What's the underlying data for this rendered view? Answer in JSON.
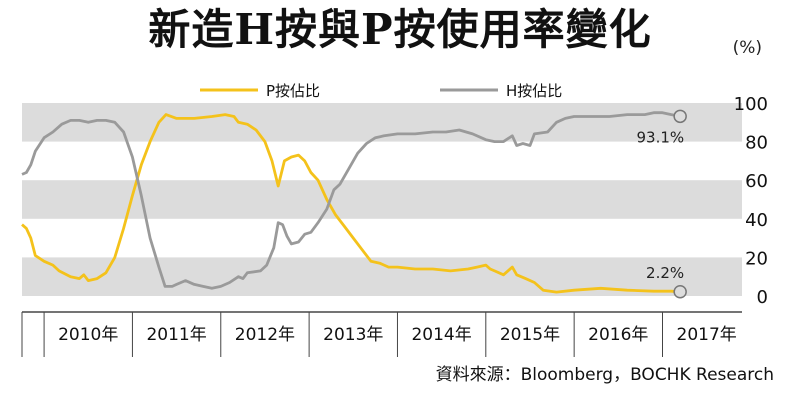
{
  "chart_data": {
    "type": "line",
    "title": "新造H按與P按使用率變化",
    "unit_label": "(%)",
    "source": "資料來源：Bloomberg，BOCHK Research",
    "x_labels": [
      "2010年",
      "2011年",
      "2012年",
      "2013年",
      "2014年",
      "2015年",
      "2016年",
      "2017年"
    ],
    "x_range": [
      2009.75,
      2017.9
    ],
    "yticks": [
      0,
      20,
      40,
      60,
      80,
      100
    ],
    "ylim": [
      0,
      100
    ],
    "legend_placement": "top",
    "bands": [
      [
        80,
        100
      ],
      [
        40,
        60
      ],
      [
        0,
        20
      ]
    ],
    "series": [
      {
        "name": "P按佔比",
        "color": "#f4c21b",
        "end_label": "2.2%",
        "points": [
          [
            2009.75,
            37
          ],
          [
            2009.8,
            35
          ],
          [
            2009.85,
            30
          ],
          [
            2009.9,
            21
          ],
          [
            2010.0,
            18
          ],
          [
            2010.1,
            16
          ],
          [
            2010.17,
            13
          ],
          [
            2010.3,
            10
          ],
          [
            2010.4,
            9
          ],
          [
            2010.45,
            11
          ],
          [
            2010.5,
            8
          ],
          [
            2010.6,
            9
          ],
          [
            2010.7,
            12
          ],
          [
            2010.8,
            20
          ],
          [
            2010.9,
            35
          ],
          [
            2011.0,
            52
          ],
          [
            2011.1,
            68
          ],
          [
            2011.2,
            80
          ],
          [
            2011.3,
            90
          ],
          [
            2011.38,
            94
          ],
          [
            2011.5,
            92
          ],
          [
            2011.7,
            92
          ],
          [
            2011.9,
            93
          ],
          [
            2012.05,
            94
          ],
          [
            2012.15,
            93
          ],
          [
            2012.2,
            90
          ],
          [
            2012.3,
            89
          ],
          [
            2012.4,
            86
          ],
          [
            2012.5,
            80
          ],
          [
            2012.58,
            70
          ],
          [
            2012.65,
            57
          ],
          [
            2012.72,
            70
          ],
          [
            2012.8,
            72
          ],
          [
            2012.88,
            73
          ],
          [
            2012.95,
            70
          ],
          [
            2013.02,
            64
          ],
          [
            2013.1,
            60
          ],
          [
            2013.2,
            50
          ],
          [
            2013.3,
            42
          ],
          [
            2013.4,
            36
          ],
          [
            2013.5,
            30
          ],
          [
            2013.6,
            24
          ],
          [
            2013.7,
            18
          ],
          [
            2013.8,
            17
          ],
          [
            2013.9,
            15
          ],
          [
            2014.0,
            15
          ],
          [
            2014.2,
            14
          ],
          [
            2014.4,
            14
          ],
          [
            2014.6,
            13
          ],
          [
            2014.8,
            14
          ],
          [
            2014.9,
            15
          ],
          [
            2015.0,
            16
          ],
          [
            2015.05,
            14
          ],
          [
            2015.1,
            13
          ],
          [
            2015.2,
            11
          ],
          [
            2015.3,
            15
          ],
          [
            2015.35,
            11
          ],
          [
            2015.45,
            9
          ],
          [
            2015.55,
            7
          ],
          [
            2015.65,
            3
          ],
          [
            2015.8,
            2
          ],
          [
            2016.0,
            3
          ],
          [
            2016.3,
            4
          ],
          [
            2016.6,
            3
          ],
          [
            2016.9,
            2.5
          ],
          [
            2017.1,
            2.5
          ],
          [
            2017.2,
            2.2
          ]
        ]
      },
      {
        "name": "H按佔比",
        "color": "#9a9a9a",
        "end_label": "93.1%",
        "points": [
          [
            2009.75,
            63
          ],
          [
            2009.8,
            64
          ],
          [
            2009.85,
            68
          ],
          [
            2009.9,
            75
          ],
          [
            2010.0,
            82
          ],
          [
            2010.1,
            85
          ],
          [
            2010.2,
            89
          ],
          [
            2010.3,
            91
          ],
          [
            2010.4,
            91
          ],
          [
            2010.5,
            90
          ],
          [
            2010.6,
            91
          ],
          [
            2010.7,
            91
          ],
          [
            2010.8,
            90
          ],
          [
            2010.9,
            85
          ],
          [
            2011.0,
            72
          ],
          [
            2011.1,
            52
          ],
          [
            2011.2,
            30
          ],
          [
            2011.3,
            15
          ],
          [
            2011.37,
            5
          ],
          [
            2011.45,
            5
          ],
          [
            2011.5,
            6
          ],
          [
            2011.6,
            8
          ],
          [
            2011.7,
            6
          ],
          [
            2011.8,
            5
          ],
          [
            2011.9,
            4
          ],
          [
            2012.0,
            5
          ],
          [
            2012.1,
            7
          ],
          [
            2012.2,
            10
          ],
          [
            2012.25,
            9
          ],
          [
            2012.3,
            12
          ],
          [
            2012.45,
            13
          ],
          [
            2012.52,
            16
          ],
          [
            2012.6,
            25
          ],
          [
            2012.65,
            38
          ],
          [
            2012.7,
            37
          ],
          [
            2012.75,
            31
          ],
          [
            2012.8,
            27
          ],
          [
            2012.88,
            28
          ],
          [
            2012.95,
            32
          ],
          [
            2013.02,
            33
          ],
          [
            2013.1,
            38
          ],
          [
            2013.2,
            45
          ],
          [
            2013.28,
            55
          ],
          [
            2013.35,
            58
          ],
          [
            2013.45,
            66
          ],
          [
            2013.55,
            74
          ],
          [
            2013.65,
            79
          ],
          [
            2013.75,
            82
          ],
          [
            2013.85,
            83
          ],
          [
            2014.0,
            84
          ],
          [
            2014.2,
            84
          ],
          [
            2014.4,
            85
          ],
          [
            2014.55,
            85
          ],
          [
            2014.7,
            86
          ],
          [
            2014.85,
            84
          ],
          [
            2015.0,
            81
          ],
          [
            2015.1,
            80
          ],
          [
            2015.2,
            80
          ],
          [
            2015.3,
            83
          ],
          [
            2015.35,
            78
          ],
          [
            2015.42,
            79
          ],
          [
            2015.5,
            78
          ],
          [
            2015.55,
            84
          ],
          [
            2015.7,
            85
          ],
          [
            2015.8,
            90
          ],
          [
            2015.9,
            92
          ],
          [
            2016.0,
            93
          ],
          [
            2016.2,
            93
          ],
          [
            2016.4,
            93
          ],
          [
            2016.6,
            94
          ],
          [
            2016.8,
            94
          ],
          [
            2016.9,
            95
          ],
          [
            2017.0,
            95
          ],
          [
            2017.1,
            94
          ],
          [
            2017.2,
            93.1
          ]
        ]
      }
    ]
  }
}
